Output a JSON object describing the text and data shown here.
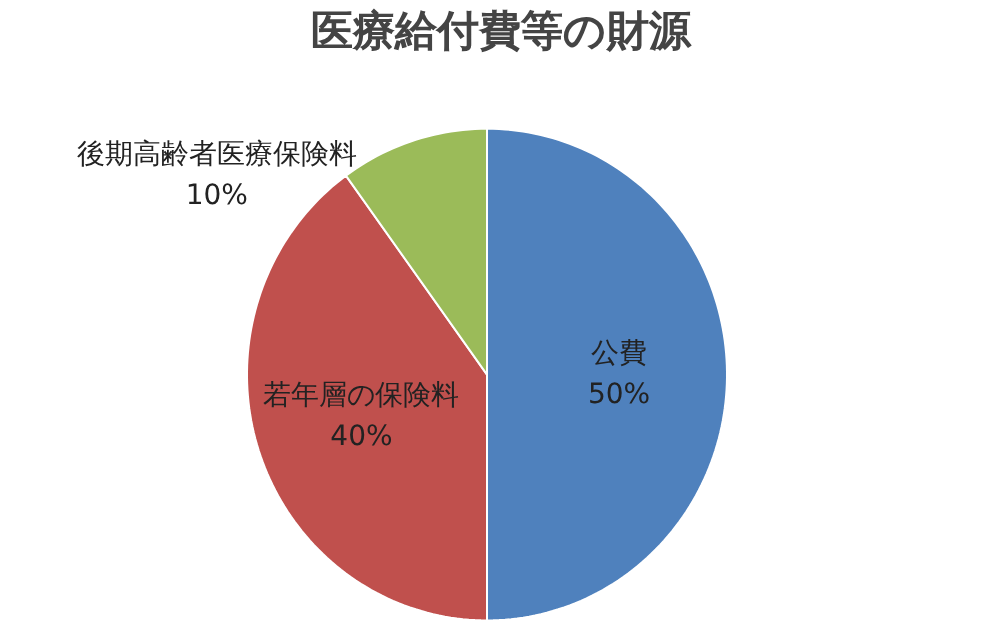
{
  "chart_data": {
    "type": "pie",
    "title": "医療給付費等の財源",
    "categories": [
      "公費",
      "若年層の保険料",
      "後期高齢者医療保険料"
    ],
    "values": [
      50,
      40,
      10
    ],
    "colors": [
      "#4f81bd",
      "#c0504d",
      "#9bbb59"
    ],
    "value_labels": [
      "50%",
      "40%",
      "10%"
    ]
  }
}
